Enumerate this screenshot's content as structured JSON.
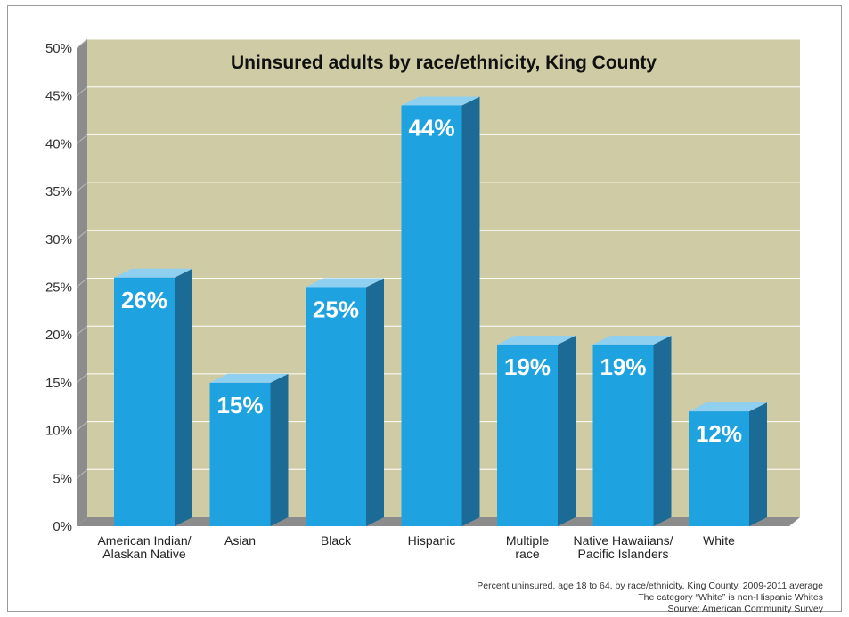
{
  "chart_data": {
    "type": "bar",
    "title": "Uninsured adults by race/ethnicity, King County",
    "categories": [
      [
        "American Indian/",
        "Alaskan Native"
      ],
      [
        "Asian"
      ],
      [
        "Black"
      ],
      [
        "Hispanic"
      ],
      [
        "Multiple",
        "race"
      ],
      [
        "Native Hawaiians/",
        "Pacific Islanders"
      ],
      [
        "White"
      ]
    ],
    "values": [
      26,
      15,
      25,
      44,
      19,
      19,
      12
    ],
    "data_labels": [
      "26%",
      "15%",
      "25%",
      "44%",
      "19%",
      "19%",
      "12%"
    ],
    "ylim": [
      0,
      50
    ],
    "yticks": [
      "0%",
      "5%",
      "10%",
      "15%",
      "20%",
      "25%",
      "30%",
      "35%",
      "40%",
      "45%",
      "50%"
    ],
    "grid": true,
    "colors": {
      "plot_background": "#cfcba5",
      "bar_front": "#1fa3e0",
      "bar_top": "#8fcff0",
      "bar_side": "#1c6b96",
      "wall": "#8c8c8c",
      "floor": "#8c8c8c",
      "gridline": "#ffffff"
    }
  },
  "notes": [
    "Percent uninsured, age 18 to 64, by race/ethnicity, King County, 2009-2011 average",
    "The category “White” is non-Hispanic Whites",
    "Sourve: American Community Survey"
  ]
}
